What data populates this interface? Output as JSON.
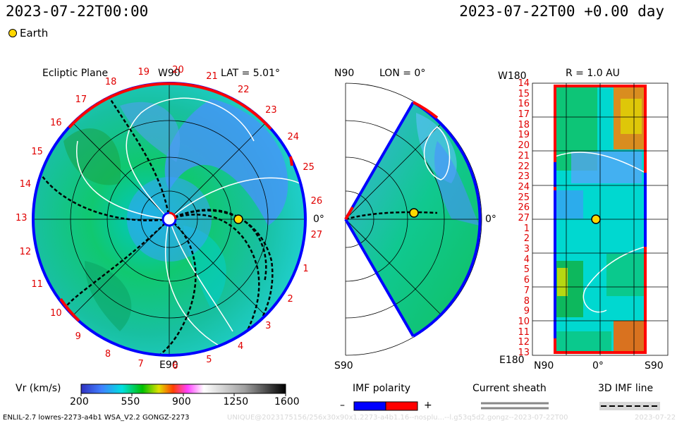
{
  "header": {
    "datetime_left": "2023-07-22T00:00",
    "datetime_right": "2023-07-22T00 +0.00 day"
  },
  "legend": {
    "earth_label": "Earth",
    "earth_color": "#ffd700"
  },
  "panels": {
    "ecliptic": {
      "title": "Ecliptic Plane",
      "top_label": "W90",
      "lat_label": "LAT = 5.01°",
      "right_label": "0°",
      "bottom_label": "E90",
      "rotation_marks": [
        "19",
        "20",
        "21",
        "22",
        "23",
        "24",
        "25",
        "26",
        "27",
        "1",
        "2",
        "3",
        "4",
        "5",
        "6",
        "7",
        "8",
        "9",
        "10",
        "11",
        "12",
        "13",
        "14",
        "15",
        "16",
        "17",
        "18"
      ]
    },
    "meridional": {
      "top_label": "N90",
      "lon_label": "LON = 0°",
      "right_label": "0°",
      "bottom_label": "S90"
    },
    "latlon": {
      "title": "R = 1.0 AU",
      "top_left_label": "W180",
      "bottom_left_label": "E180",
      "y_ticks": [
        "14",
        "15",
        "16",
        "17",
        "18",
        "19",
        "20",
        "21",
        "22",
        "23",
        "24",
        "25",
        "26",
        "27",
        "1",
        "2",
        "3",
        "4",
        "5",
        "6",
        "7",
        "8",
        "9",
        "10",
        "11",
        "12",
        "13"
      ],
      "x_ticks": [
        "N90",
        "0°",
        "S90"
      ]
    }
  },
  "colorbar": {
    "label": "Vr (km/s)",
    "ticks": [
      "200",
      "550",
      "900",
      "1250",
      "1600"
    ]
  },
  "imf": {
    "title": "IMF polarity",
    "minus": "–",
    "plus": "+",
    "neg_color": "#0000ff",
    "pos_color": "#ff0000"
  },
  "sheath": {
    "title": "Current sheath"
  },
  "imf3d": {
    "title": "3D IMF line"
  },
  "footer": {
    "model": "ENLIL-2.7 lowres-2273-a4b1 WSA_V2.2 GONGZ-2273",
    "watermark": "UNIQUE@2023175156/256x30x90x1.2273-a4b1.16--nosplu...--l.g53q5d2.gongz--2023-07-22T00",
    "date_right": "2023-07-22"
  }
}
